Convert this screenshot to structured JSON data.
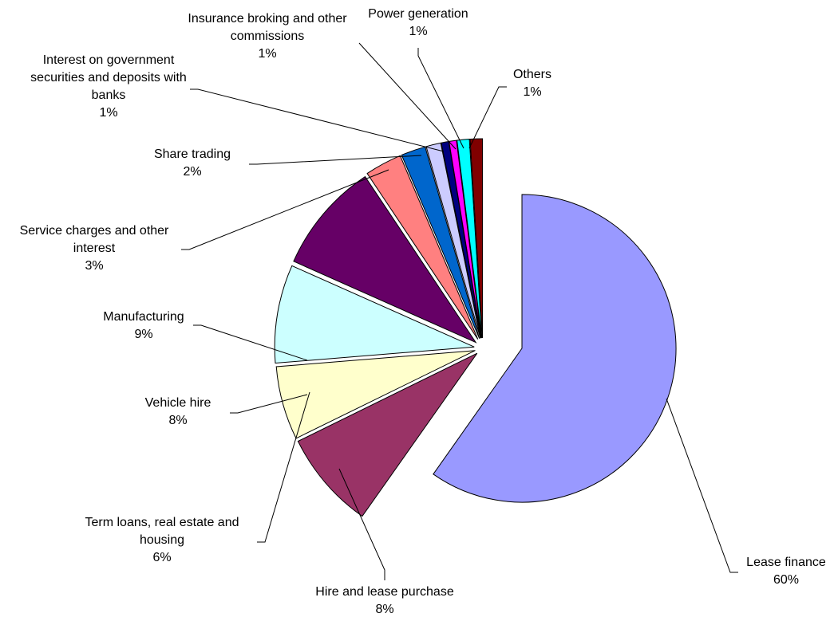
{
  "chart_data": {
    "type": "pie",
    "exploded": true,
    "start": "top (12 o'clock), clockwise",
    "legend": "none",
    "slices": [
      {
        "label": [
          "Lease finance"
        ],
        "percent_label": "60%",
        "value": 60.0,
        "color": "#9999FF"
      },
      {
        "label": [
          "Hire and lease purchase"
        ],
        "percent_label": "8%",
        "value": 8.0,
        "color": "#993366"
      },
      {
        "label": [
          "Term loans, real estate and",
          "housing"
        ],
        "percent_label": "6%",
        "value": 6.0,
        "color": "#FFFFCC"
      },
      {
        "label": [
          "Vehicle hire"
        ],
        "percent_label": "8%",
        "value": 8.0,
        "color": "#CCFFFF"
      },
      {
        "label": [
          "Manufacturing"
        ],
        "percent_label": "9%",
        "value": 9.0,
        "color": "#660066"
      },
      {
        "label": [
          "Service charges and other",
          "interest"
        ],
        "percent_label": "3%",
        "value": 3.0,
        "color": "#FF8080"
      },
      {
        "label": [
          "Share trading"
        ],
        "percent_label": "2%",
        "value": 2.0,
        "color": "#0066CC"
      },
      {
        "label": [
          "Interest on government",
          "securities and deposits with",
          "banks"
        ],
        "percent_label": "1%",
        "value": 1.2,
        "color": "#CCCCFF"
      },
      {
        "label": [
          "Insurance broking and other",
          "commissions"
        ],
        "percent_label": "1%",
        "value": 0.6,
        "color": "#000080"
      },
      {
        "label": [
          "Power generation"
        ],
        "percent_label": "1%",
        "value": 0.6,
        "color": "#FF00FF"
      },
      {
        "label": [
          "Others"
        ],
        "percent_label": "1%",
        "value": 1.0,
        "color": "#00FFFF"
      },
      {
        "label": [],
        "percent_label": "",
        "value": 1.0,
        "color": "#800000"
      }
    ]
  }
}
